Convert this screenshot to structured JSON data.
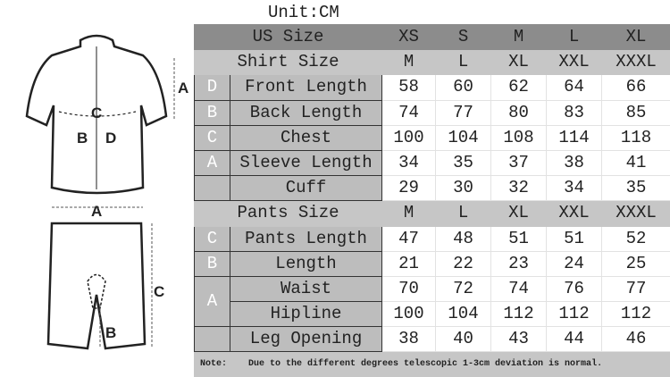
{
  "unit": "Unit:CM",
  "figure_labels": {
    "shirt": [
      "A",
      "C",
      "B",
      "D",
      "A"
    ],
    "pants": [
      "C",
      "B"
    ]
  },
  "header": {
    "label": "US Size",
    "sizes": [
      "XS",
      "S",
      "M",
      "L",
      "XL"
    ]
  },
  "shirt": {
    "label": "Shirt Size",
    "sizes": [
      "M",
      "L",
      "XL",
      "XXL",
      "XXXL"
    ],
    "rows": [
      {
        "letter": "D",
        "name": "Front Length",
        "values": [
          "58",
          "60",
          "62",
          "64",
          "66"
        ]
      },
      {
        "letter": "B",
        "name": "Back Length",
        "values": [
          "74",
          "77",
          "80",
          "83",
          "85"
        ]
      },
      {
        "letter": "C",
        "name": "Chest",
        "values": [
          "100",
          "104",
          "108",
          "114",
          "118"
        ]
      },
      {
        "letter": "A",
        "name": "Sleeve Length",
        "values": [
          "34",
          "35",
          "37",
          "38",
          "41"
        ]
      },
      {
        "letter": "",
        "name": "Cuff",
        "values": [
          "29",
          "30",
          "32",
          "34",
          "35"
        ]
      }
    ]
  },
  "pants": {
    "label": "Pants Size",
    "sizes": [
      "M",
      "L",
      "XL",
      "XXL",
      "XXXL"
    ],
    "rows": [
      {
        "letter": "C",
        "name": "Pants Length",
        "values": [
          "47",
          "48",
          "51",
          "51",
          "52"
        ]
      },
      {
        "letter": "B",
        "name": "Length",
        "values": [
          "21",
          "22",
          "23",
          "24",
          "25"
        ]
      },
      {
        "letter": "A",
        "name": "Waist",
        "values": [
          "70",
          "72",
          "74",
          "76",
          "77"
        ]
      },
      {
        "letter": "",
        "name": "Hipline",
        "values": [
          "100",
          "104",
          "112",
          "112",
          "112"
        ]
      },
      {
        "letter": "",
        "name": "Leg Opening",
        "values": [
          "38",
          "40",
          "43",
          "44",
          "46"
        ]
      }
    ]
  },
  "note": {
    "label": "Note:",
    "text": "Due to the different degrees telescopic 1-3cm deviation is normal."
  }
}
